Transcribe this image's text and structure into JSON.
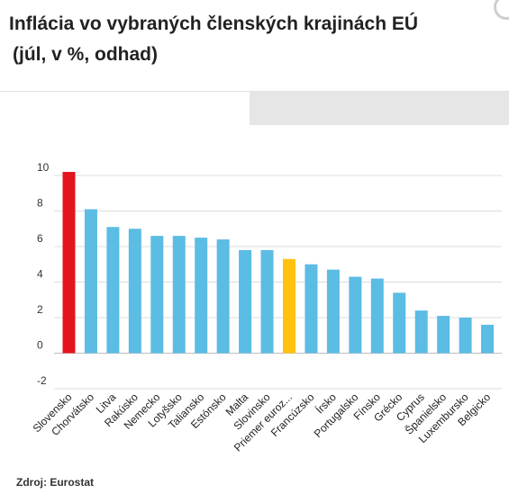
{
  "header": {
    "title_line1": "Inflácia vo vybraných členských krajinách EÚ",
    "title_line2": "(júl, v %, odhad)"
  },
  "footer": {
    "source_label": "Zdroj:",
    "source_value": "Eurostat"
  },
  "chart_data": {
    "type": "bar",
    "title": "Inflácia vo vybraných členských krajinách EÚ (júl, v %, odhad)",
    "xlabel": "",
    "ylabel": "",
    "ylim": [
      -2,
      10
    ],
    "yticks": [
      10,
      8,
      6,
      4,
      2,
      0,
      -2
    ],
    "grid": true,
    "legend": "none",
    "categories": [
      "Slovensko",
      "Chorvátsko",
      "Litva",
      "Rakúsko",
      "Nemecko",
      "Lotyšsko",
      "Taliansko",
      "Estónsko",
      "Malta",
      "Slovinsko",
      "Priemer euroz...",
      "Francúzsko",
      "Írsko",
      "Portugalsko",
      "Fínsko",
      "Grécko",
      "Cyprus",
      "Španielsko",
      "Luxembursko",
      "Belgicko"
    ],
    "values": [
      10.2,
      8.1,
      7.1,
      7.0,
      6.6,
      6.6,
      6.5,
      6.4,
      5.8,
      5.8,
      5.3,
      5.0,
      4.7,
      4.3,
      4.2,
      3.4,
      2.4,
      2.1,
      2.0,
      1.6
    ],
    "colors": {
      "default": "#5bbce4",
      "highlight_slovakia": "#e3141e",
      "highlight_eurozone": "#ffc20e"
    },
    "bar_colors": [
      "#e3141e",
      "#5bbce4",
      "#5bbce4",
      "#5bbce4",
      "#5bbce4",
      "#5bbce4",
      "#5bbce4",
      "#5bbce4",
      "#5bbce4",
      "#5bbce4",
      "#ffc20e",
      "#5bbce4",
      "#5bbce4",
      "#5bbce4",
      "#5bbce4",
      "#5bbce4",
      "#5bbce4",
      "#5bbce4",
      "#5bbce4",
      "#5bbce4"
    ]
  }
}
